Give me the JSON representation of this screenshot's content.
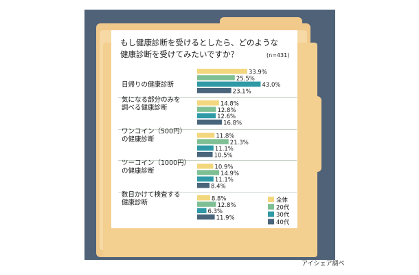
{
  "title_line1": "もし健康診断を受けるとしたら、どのような",
  "title_line2": "健康診断を受けてみたいですか？",
  "sample_note": "(n=431)",
  "credit": "アイシェア調べ",
  "chart_data": {
    "type": "bar",
    "orientation": "horizontal",
    "categories": [
      [
        "日帰りの健康診断"
      ],
      [
        "気になる部分のみを",
        "調べる健康診断"
      ],
      [
        "ワンコイン（500円）",
        "の健康診断"
      ],
      [
        "ツーコイン（1000円）",
        "の健康診断"
      ],
      [
        "数日かけて検査する",
        "健康診断"
      ]
    ],
    "series": [
      {
        "name": "全体",
        "color": "#f3d77e",
        "values": [
          33.9,
          14.8,
          11.8,
          10.9,
          8.8
        ]
      },
      {
        "name": "20代",
        "color": "#7fbf94",
        "values": [
          25.5,
          12.8,
          21.3,
          14.9,
          12.8
        ]
      },
      {
        "name": "30代",
        "color": "#2f9aa6",
        "values": [
          43.0,
          12.6,
          11.1,
          11.1,
          6.3
        ]
      },
      {
        "name": "40代",
        "color": "#49657b",
        "values": [
          23.1,
          16.8,
          10.5,
          8.4,
          11.9
        ]
      }
    ],
    "value_suffix": "%",
    "legend_position": "bottom-right",
    "separator_color": "#c8d4c9"
  }
}
